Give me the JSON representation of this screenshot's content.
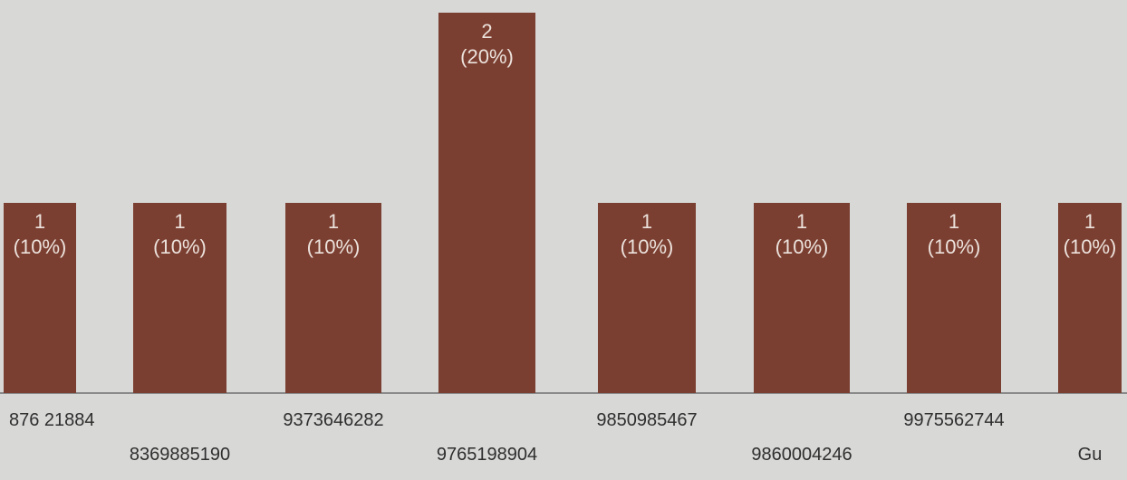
{
  "chart_data": {
    "type": "bar",
    "categories": [
      "876 21884",
      "8369885190",
      "9373646282",
      "9765198904",
      "9850985467",
      "9860004246",
      "9975562744",
      "Gu"
    ],
    "values": [
      1,
      1,
      1,
      2,
      1,
      1,
      1,
      1
    ],
    "percent_labels": [
      "(10%)",
      "(10%)",
      "(10%)",
      "(20%)",
      "(10%)",
      "(10%)",
      "(10%)",
      "(10%)"
    ],
    "count_labels": [
      "1",
      "1",
      "1",
      "2",
      "1",
      "1",
      "1",
      "1"
    ],
    "ylim": [
      0,
      2
    ],
    "grid": false,
    "legend": "none",
    "title": "",
    "xlabel": "",
    "ylabel": ""
  },
  "colors": {
    "background": "#d8d9d7",
    "bar": "#7b3f31",
    "bar_label": "#ece2dc",
    "axis_label": "#2e2e2e",
    "baseline": "#8a8a8a"
  }
}
